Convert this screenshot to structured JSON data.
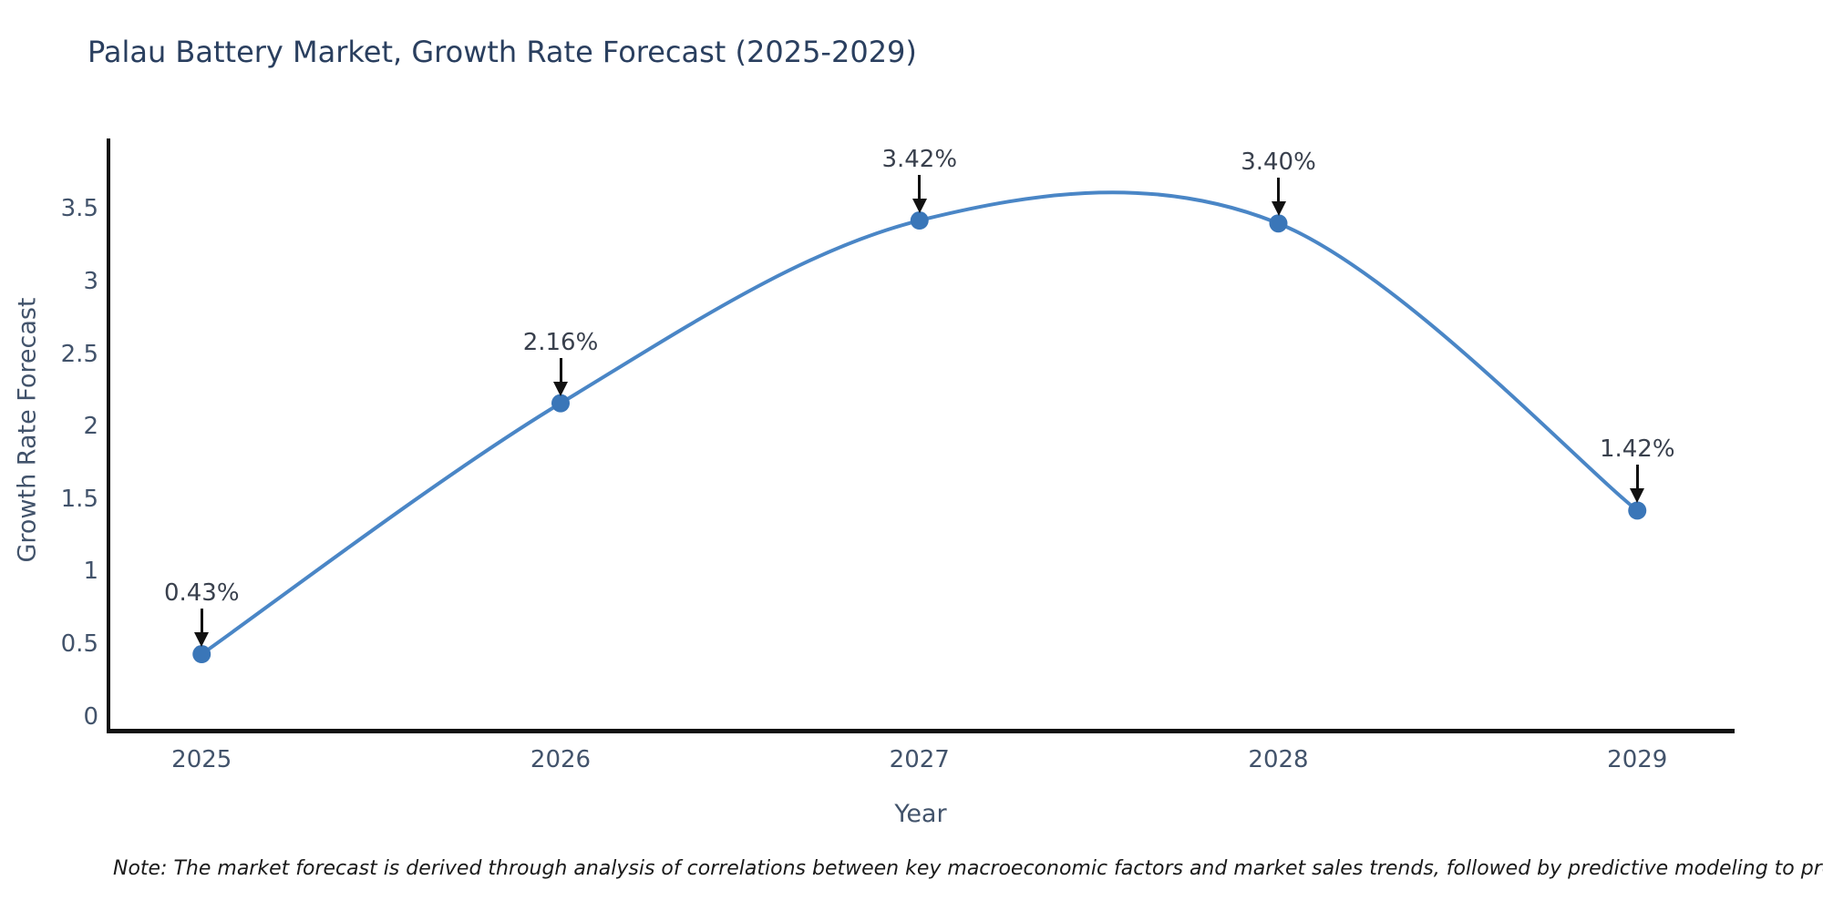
{
  "note": "Note: The market forecast is derived through analysis of correlations between key macroeconomic factors and market sales trends, followed by predictive modeling to project future sales",
  "chart_data": {
    "type": "line",
    "title": "Palau Battery Market, Growth Rate Forecast (2025-2029)",
    "xlabel": "Year",
    "ylabel": "Growth Rate Forecast",
    "categories": [
      "2025",
      "2026",
      "2027",
      "2028",
      "2029"
    ],
    "values": [
      0.43,
      2.16,
      3.42,
      3.4,
      1.42
    ],
    "point_labels": [
      "0.43%",
      "2.16%",
      "3.42%",
      "3.40%",
      "1.42%"
    ],
    "yticks": [
      "0",
      "0.5",
      "1",
      "1.5",
      "2",
      "2.5",
      "3",
      "3.5"
    ],
    "ylim": [
      0,
      3.97
    ],
    "grid": false,
    "legend": "none",
    "line_smoothing": "spline",
    "annotation_style": "arrow-down",
    "colors": {
      "line": "#4a86c6",
      "marker": "#3a76b8",
      "title_text": "#2a3f5f",
      "axis_text": "#42536b",
      "annotation_text": "#39404d",
      "axis_line": "#111111",
      "note_text": "#1a1a1a",
      "background": "#ffffff"
    }
  }
}
